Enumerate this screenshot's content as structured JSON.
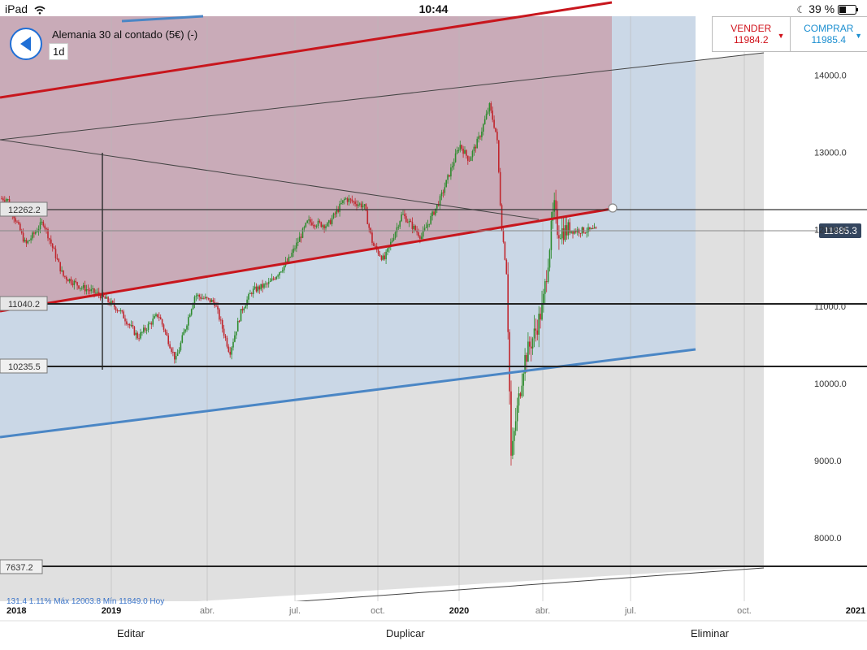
{
  "status_bar": {
    "device": "iPad",
    "wifi_icon": "wifi-icon",
    "time": "10:44",
    "moon_icon": "moon-icon",
    "battery": "39 %",
    "battery_icon": "battery-icon"
  },
  "header": {
    "instrument": "Alemania 30 al contado (5€) (-)",
    "timeframe": "1d",
    "back_icon": "back-arrow-icon"
  },
  "trade": {
    "sell": {
      "label": "VENDER",
      "price": "11984.2",
      "color": "#d0121b"
    },
    "buy": {
      "label": "COMPRAR",
      "price": "11985.4",
      "color": "#1c8fd0"
    }
  },
  "chart_data": {
    "type": "line",
    "series_type": "candlestick",
    "x_ticks": [
      "2018",
      "2019",
      "abr.",
      "jul.",
      "oct.",
      "2020",
      "abr.",
      "jul.",
      "oct.",
      "2021"
    ],
    "y_ticks": [
      "14000.0",
      "13000.0",
      "12000.0",
      "11000.0",
      "10000.0",
      "9000.0",
      "8000.0"
    ],
    "ylim": [
      7200,
      14450
    ],
    "current_price": "11985.3",
    "horizontal_levels": [
      "12262.2",
      "11040.2",
      "10235.5",
      "7637.2"
    ],
    "stats_text": "131.4   1.11%   Máx 12003.8   Mín 11849.0   Hoy",
    "series": [
      {
        "x": [
          "2018-01-02",
          "2018-02-01",
          "2018-03-01",
          "2018-04-02",
          "2018-05-02",
          "2018-06-01",
          "2018-07-02",
          "2018-08-01",
          "2018-09-03",
          "2018-10-01",
          "2018-11-01",
          "2018-12-03",
          "2018-12-27",
          "2019-01-15",
          "2019-02-01",
          "2019-03-01",
          "2019-04-01",
          "2019-05-02",
          "2019-06-03",
          "2019-07-01",
          "2019-08-01",
          "2019-08-15",
          "2019-09-02",
          "2019-10-01",
          "2019-11-01",
          "2019-12-02",
          "2020-01-02",
          "2020-01-17",
          "2020-02-03",
          "2020-02-19",
          "2020-03-02",
          "2020-03-09",
          "2020-03-18",
          "2020-03-25",
          "2020-04-01",
          "2020-04-15",
          "2020-05-04",
          "2020-05-15",
          "2020-06-02",
          "2020-06-08"
        ],
        "values": [
          12400,
          11800,
          12100,
          11400,
          11250,
          11150,
          10950,
          10600,
          10900,
          10300,
          11150,
          11050,
          10400,
          10950,
          11200,
          11300,
          11600,
          12100,
          12050,
          12400,
          12300,
          11800,
          11600,
          12200,
          11900,
          12400,
          13100,
          12900,
          13200,
          13600,
          13200,
          12100,
          11400,
          9000,
          9500,
          10300,
          10700,
          11000,
          12300,
          11985
        ]
      }
    ]
  }
}
